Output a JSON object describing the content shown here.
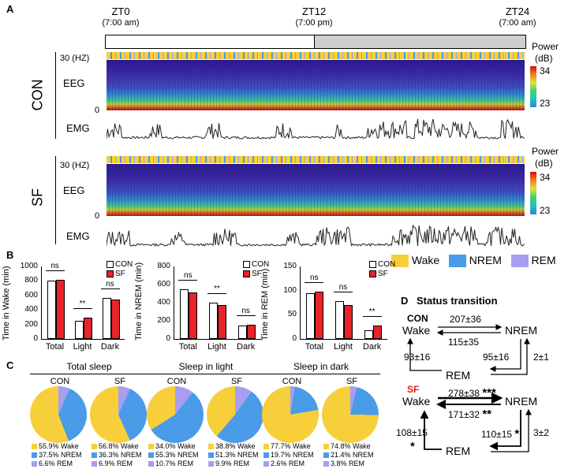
{
  "panels": {
    "A": "A",
    "B": "B",
    "C": "C",
    "D": "D"
  },
  "zt": [
    {
      "label": "ZT0",
      "time": "(7:00 am)"
    },
    {
      "label": "ZT12",
      "time": "(7:00 pm)"
    },
    {
      "label": "ZT24",
      "time": "(7:00 am)"
    }
  ],
  "rows": [
    {
      "name": "CON",
      "hz": "30 (HZ)",
      "eeg": "EEG",
      "zero": "0",
      "emg": "EMG"
    },
    {
      "name": "SF",
      "hz": "30 (HZ)",
      "eeg": "EEG",
      "zero": "0",
      "emg": "EMG"
    }
  ],
  "power": {
    "label": "Power",
    "unit": "(dB)",
    "max": "34",
    "min": "23"
  },
  "state_legend": [
    {
      "name": "Wake",
      "color": "#f7cf3b"
    },
    {
      "name": "NREM",
      "color": "#4a9be8"
    },
    {
      "name": "REM",
      "color": "#a79ef0"
    }
  ],
  "bar_legend": {
    "con": "CON",
    "sf": "SF"
  },
  "bar_charts": [
    {
      "ylabel": "Time in Wake (min)",
      "yticks": [
        "1000",
        "800",
        "600",
        "400",
        "200",
        "0"
      ],
      "ymax": 1000,
      "categories": [
        "Total",
        "Light",
        "Dark"
      ],
      "con": [
        800,
        250,
        560
      ],
      "sf": [
        820,
        290,
        545
      ],
      "sig": [
        "ns",
        "**",
        "ns"
      ]
    },
    {
      "ylabel": "Time in NREM (min)",
      "yticks": [
        "800",
        "600",
        "400",
        "200",
        "0"
      ],
      "ymax": 800,
      "categories": [
        "Total",
        "Light",
        "Dark"
      ],
      "con": [
        545,
        400,
        150
      ],
      "sf": [
        515,
        370,
        160
      ],
      "sig": [
        "ns",
        "**",
        "ns"
      ]
    },
    {
      "ylabel": "Time in REM (min)",
      "yticks": [
        "150",
        "100",
        "50",
        "0"
      ],
      "ymax": 150,
      "categories": [
        "Total",
        "Light",
        "Dark"
      ],
      "con": [
        95,
        78,
        18
      ],
      "sf": [
        98,
        70,
        28
      ],
      "sig": [
        "ns",
        "ns",
        "**"
      ]
    }
  ],
  "pie_groups": [
    {
      "title": "Total sleep",
      "pies": [
        {
          "name": "CON",
          "wake": 55.9,
          "nrem": 37.5,
          "rem": 6.6,
          "lw": "55.9% Wake",
          "ln": "37.5% NREM",
          "lr": "6.6% REM"
        },
        {
          "name": "SF",
          "wake": 56.8,
          "nrem": 36.3,
          "rem": 6.9,
          "lw": "56.8% Wake",
          "ln": "36.3% NREM",
          "lr": "6.9% REM"
        }
      ]
    },
    {
      "title": "Sleep in light",
      "pies": [
        {
          "name": "CON",
          "wake": 34.0,
          "nrem": 55.3,
          "rem": 10.7,
          "lw": "34.0% Wake",
          "ln": "55.3% NREM",
          "lr": "10.7% REM"
        },
        {
          "name": "SF",
          "wake": 38.8,
          "nrem": 51.3,
          "rem": 9.9,
          "lw": "38.8% Wake",
          "ln": "51.3% NREM",
          "lr": "9.9% REM"
        }
      ]
    },
    {
      "title": "Sleep in dark",
      "pies": [
        {
          "name": "CON",
          "wake": 77.7,
          "nrem": 19.7,
          "rem": 2.6,
          "lw": "77.7% Wake",
          "ln": "19.7% NREM",
          "lr": "2.6% REM"
        },
        {
          "name": "SF",
          "wake": 74.8,
          "nrem": 21.4,
          "rem": 3.8,
          "lw": "74.8% Wake",
          "ln": "21.4% NREM",
          "lr": "3.8% REM"
        }
      ]
    }
  ],
  "transition": {
    "title": "Status transition",
    "con": {
      "name": "CON",
      "wake": "Wake",
      "nrem": "NREM",
      "rem": "REM",
      "w2n": "207±36",
      "n2w": "115±35",
      "r2w": "93±16",
      "n2r": "95±16",
      "r2n": "2±1"
    },
    "sf": {
      "name": "SF",
      "wake": "Wake",
      "nrem": "NREM",
      "rem": "REM",
      "w2n": "278±38",
      "w2n_sig": "***",
      "n2w": "171±32",
      "n2w_sig": "**",
      "r2w": "108±15",
      "r2w_sig": "*",
      "n2r": "110±15",
      "n2r_sig": "*",
      "r2n": "3±2"
    }
  },
  "chart_data": [
    {
      "type": "bar",
      "title": "",
      "ylabel": "Time in Wake (min)",
      "categories": [
        "Total",
        "Light",
        "Dark"
      ],
      "series": [
        {
          "name": "CON",
          "values": [
            800,
            250,
            560
          ]
        },
        {
          "name": "SF",
          "values": [
            820,
            290,
            545
          ]
        }
      ],
      "ylim": [
        0,
        1000
      ]
    },
    {
      "type": "bar",
      "title": "",
      "ylabel": "Time in NREM (min)",
      "categories": [
        "Total",
        "Light",
        "Dark"
      ],
      "series": [
        {
          "name": "CON",
          "values": [
            545,
            400,
            150
          ]
        },
        {
          "name": "SF",
          "values": [
            515,
            370,
            160
          ]
        }
      ],
      "ylim": [
        0,
        800
      ]
    },
    {
      "type": "bar",
      "title": "",
      "ylabel": "Time in REM (min)",
      "categories": [
        "Total",
        "Light",
        "Dark"
      ],
      "series": [
        {
          "name": "CON",
          "values": [
            95,
            78,
            18
          ]
        },
        {
          "name": "SF",
          "values": [
            98,
            70,
            28
          ]
        }
      ],
      "ylim": [
        0,
        150
      ]
    },
    {
      "type": "pie",
      "title": "Total sleep",
      "series": [
        {
          "name": "CON",
          "values": [
            55.9,
            37.5,
            6.6
          ]
        },
        {
          "name": "SF",
          "values": [
            56.8,
            36.3,
            6.9
          ]
        }
      ],
      "categories": [
        "Wake",
        "NREM",
        "REM"
      ]
    },
    {
      "type": "pie",
      "title": "Sleep in light",
      "series": [
        {
          "name": "CON",
          "values": [
            34.0,
            55.3,
            10.7
          ]
        },
        {
          "name": "SF",
          "values": [
            38.8,
            51.3,
            9.9
          ]
        }
      ],
      "categories": [
        "Wake",
        "NREM",
        "REM"
      ]
    },
    {
      "type": "pie",
      "title": "Sleep in dark",
      "series": [
        {
          "name": "CON",
          "values": [
            77.7,
            19.7,
            2.6
          ]
        },
        {
          "name": "SF",
          "values": [
            74.8,
            21.4,
            3.8
          ]
        }
      ],
      "categories": [
        "Wake",
        "NREM",
        "REM"
      ]
    }
  ]
}
